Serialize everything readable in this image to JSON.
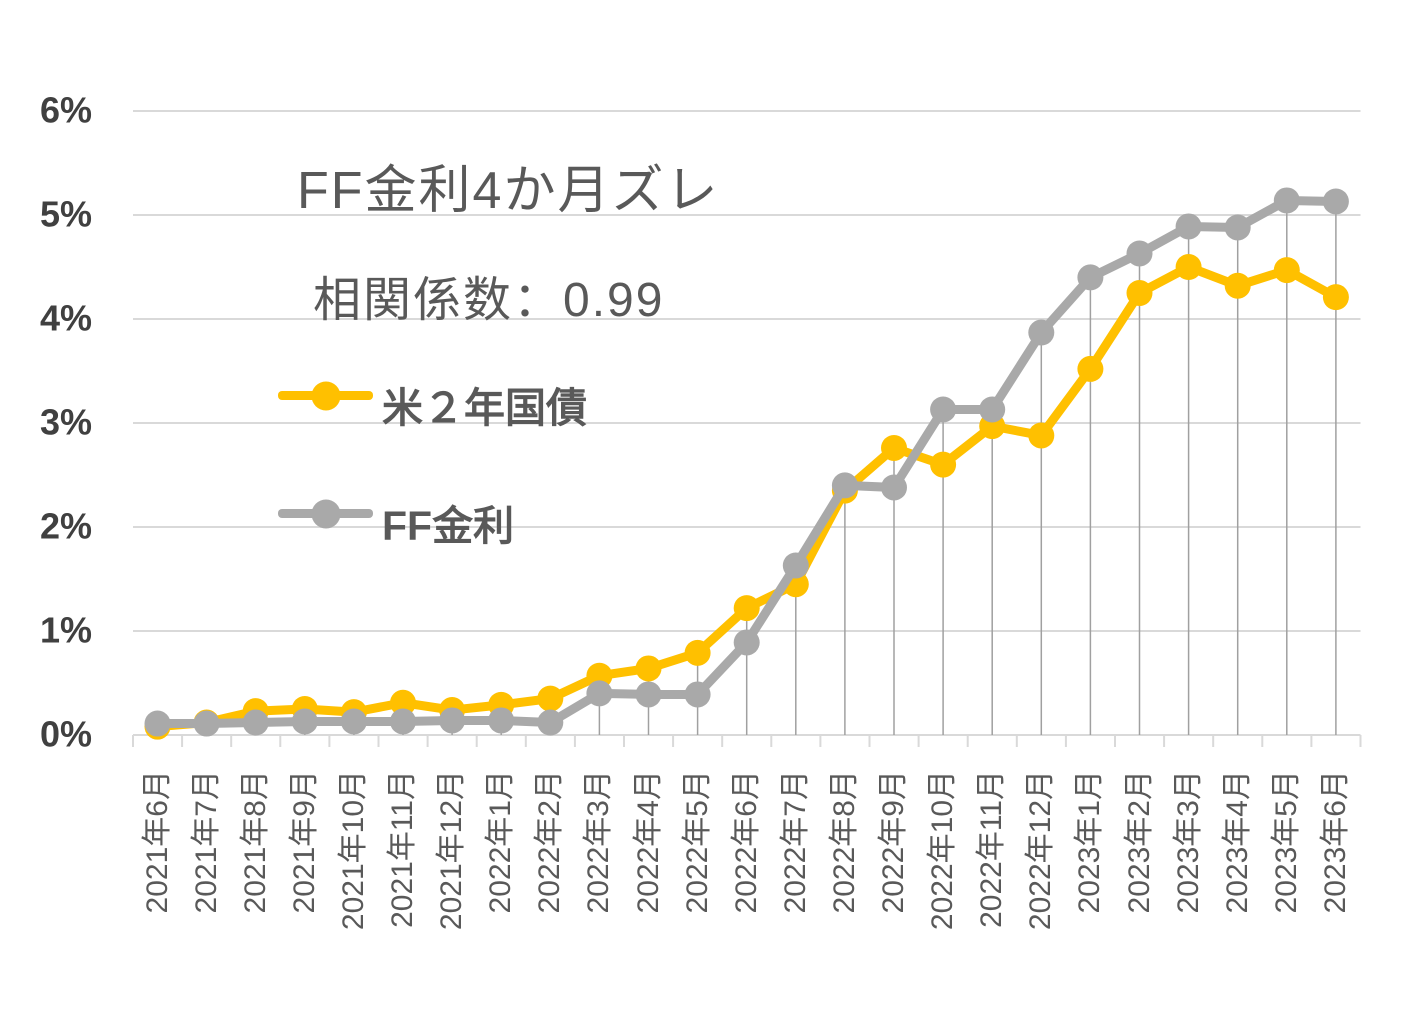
{
  "chart_data": {
    "type": "line",
    "title": "FF金利4か月ズレ",
    "subtitle": "相関係数：0.99",
    "categories": [
      "2021年6月",
      "2021年7月",
      "2021年8月",
      "2021年9月",
      "2021年10月",
      "2021年11月",
      "2021年12月",
      "2022年1月",
      "2022年2月",
      "2022年3月",
      "2022年4月",
      "2022年5月",
      "2022年6月",
      "2022年7月",
      "2022年8月",
      "2022年9月",
      "2022年10月",
      "2022年11月",
      "2022年12月",
      "2023年1月",
      "2023年2月",
      "2023年3月",
      "2023年4月",
      "2023年5月",
      "2023年6月"
    ],
    "series": [
      {
        "name": "米２年国債",
        "color": "#FFC000",
        "values": [
          0.08,
          0.12,
          0.23,
          0.25,
          0.22,
          0.31,
          0.24,
          0.29,
          0.35,
          0.57,
          0.64,
          0.79,
          1.22,
          1.45,
          2.35,
          2.76,
          2.6,
          2.97,
          2.88,
          3.52,
          4.25,
          4.5,
          4.32,
          4.47,
          4.21
        ]
      },
      {
        "name": "FF金利",
        "color": "#A9A9A9",
        "values": [
          0.11,
          0.11,
          0.12,
          0.13,
          0.13,
          0.13,
          0.14,
          0.14,
          0.12,
          0.4,
          0.39,
          0.39,
          0.89,
          1.63,
          2.4,
          2.38,
          3.13,
          3.13,
          3.87,
          4.4,
          4.63,
          4.89,
          4.88,
          5.14,
          5.13
        ]
      }
    ],
    "y_ticks": [
      "0%",
      "1%",
      "2%",
      "3%",
      "4%",
      "5%",
      "6%"
    ],
    "ylim": [
      0,
      6
    ],
    "xlabel": "",
    "ylabel": "",
    "grid": "horizontal",
    "droplines": true,
    "marker": "circle",
    "legend_position": "inside-left"
  },
  "colors": {
    "gridline": "#D9D9D9",
    "axis_line": "#D9D9D9",
    "tick": "#D9D9D9",
    "dropline": "#A0A0A0",
    "y_label_text": "#404040",
    "x_label_text": "#595959",
    "title_text": "#595959"
  }
}
